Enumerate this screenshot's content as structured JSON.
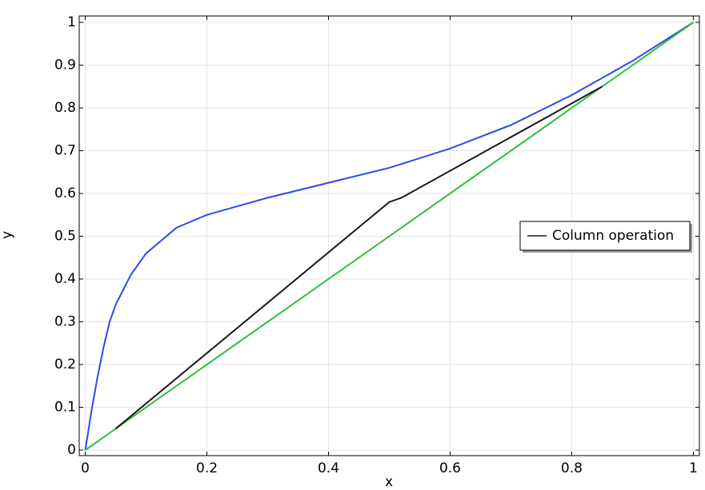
{
  "chart_data": {
    "type": "line",
    "x_label": "x",
    "y_label": "y",
    "xlim": [
      -0.01,
      1.01
    ],
    "ylim": [
      -0.013,
      1.015
    ],
    "xticks": [
      0,
      0.2,
      0.4,
      0.6,
      0.8,
      1
    ],
    "yticks": [
      0,
      0.1,
      0.2,
      0.3,
      0.4,
      0.5,
      0.6,
      0.7,
      0.8,
      0.9,
      1
    ],
    "grid": true,
    "legend_position": "right",
    "series": [
      {
        "color": "#2d4be8",
        "x": [
          0,
          0.01,
          0.02,
          0.03,
          0.04,
          0.05,
          0.075,
          0.1,
          0.15,
          0.2,
          0.25,
          0.3,
          0.4,
          0.5,
          0.6,
          0.7,
          0.8,
          0.9,
          1
        ],
        "values": [
          0,
          0.09,
          0.17,
          0.24,
          0.3,
          0.34,
          0.41,
          0.46,
          0.52,
          0.55,
          0.57,
          0.59,
          0.625,
          0.66,
          0.705,
          0.76,
          0.83,
          0.91,
          1
        ]
      },
      {
        "color": "#2fbf3a",
        "x": [
          0,
          1
        ],
        "values": [
          0,
          1
        ]
      },
      {
        "name": "Column operation",
        "color": "#1a1a1a",
        "x": [
          0.05,
          0.5,
          0.52,
          0.85
        ],
        "values": [
          0.05,
          0.58,
          0.59,
          0.85
        ]
      }
    ]
  }
}
